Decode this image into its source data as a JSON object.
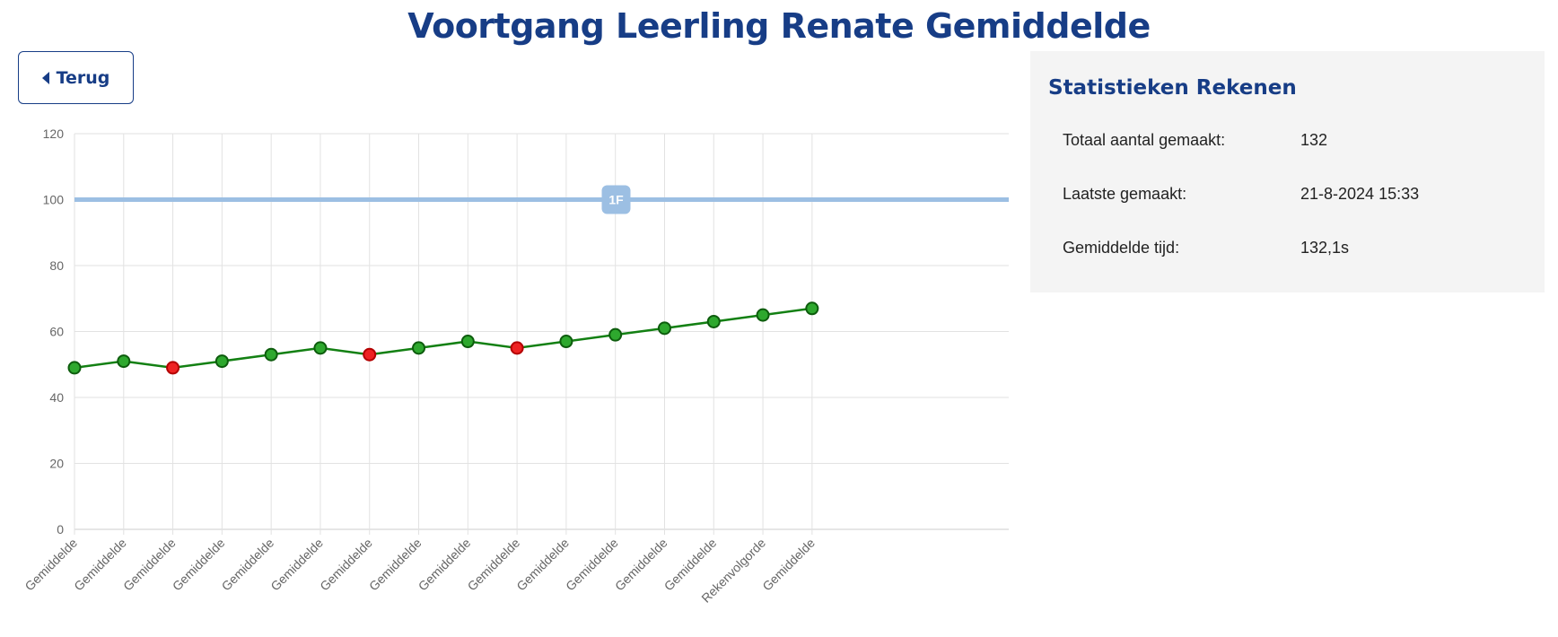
{
  "header": {
    "title": "Voortgang Leerling Renate Gemiddelde"
  },
  "toolbar": {
    "back_label": "Terug"
  },
  "stats": {
    "title": "Statistieken Rekenen",
    "rows": [
      {
        "label": "Totaal aantal gemaakt:",
        "value": "132"
      },
      {
        "label": "Laatste gemaakt:",
        "value": "21-8-2024 15:33"
      },
      {
        "label": "Gemiddelde tijd:",
        "value": "132,1s"
      }
    ]
  },
  "colors": {
    "title": "#173d86",
    "line": "#138013",
    "point_ok": "#2ea82e",
    "point_bad": "#ee2222",
    "target_line": "#9cbfe3",
    "grid": "#e2e2e2",
    "panel_bg": "#f4f4f4"
  },
  "chart_data": {
    "type": "line",
    "categories": [
      "Gemiddelde",
      "Gemiddelde",
      "Gemiddelde",
      "Gemiddelde",
      "Gemiddelde",
      "Gemiddelde",
      "Gemiddelde",
      "Gemiddelde",
      "Gemiddelde",
      "Gemiddelde",
      "Gemiddelde",
      "Gemiddelde",
      "Gemiddelde",
      "Gemiddelde",
      "Rekenvolgorde",
      "Gemiddelde"
    ],
    "series": [
      {
        "values": [
          49,
          51,
          49,
          51,
          53,
          55,
          53,
          55,
          57,
          55,
          57,
          59,
          61,
          63,
          65,
          67
        ],
        "point_status": [
          "ok",
          "ok",
          "bad",
          "ok",
          "ok",
          "ok",
          "bad",
          "ok",
          "ok",
          "bad",
          "ok",
          "ok",
          "ok",
          "ok",
          "ok",
          "ok"
        ]
      }
    ],
    "reference_line": {
      "value": 100,
      "label": "1F"
    },
    "ylim": [
      0,
      120
    ],
    "yticks": [
      0,
      20,
      40,
      60,
      80,
      100,
      120
    ],
    "x_slots": 19,
    "grid": true,
    "legend": "none",
    "title": "",
    "xlabel": "",
    "ylabel": ""
  }
}
